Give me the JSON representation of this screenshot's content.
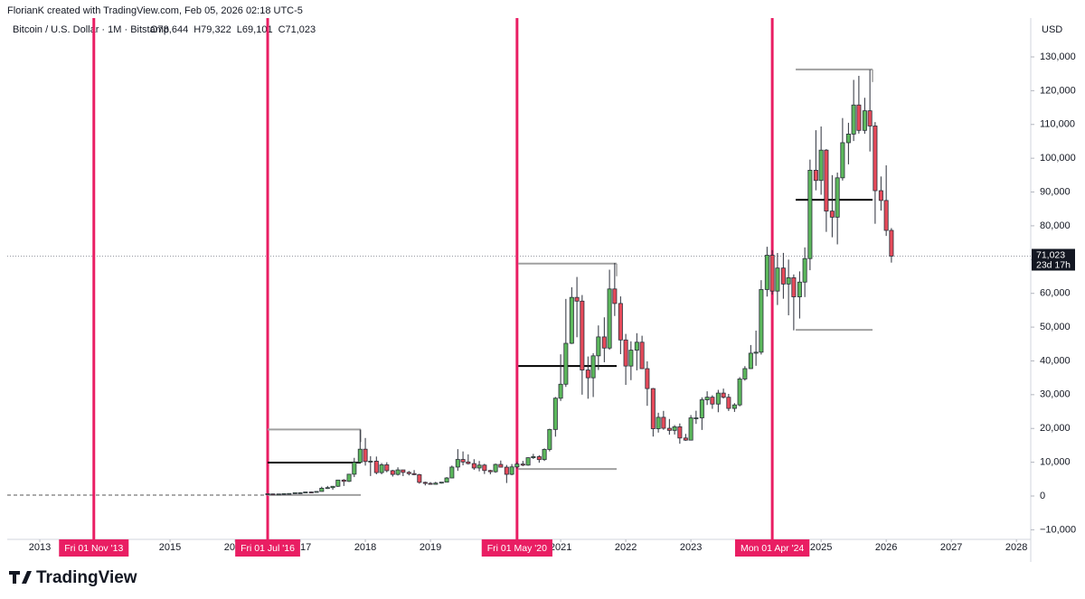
{
  "header": "FlorianK created with TradingView.com, Feb 05, 2026 02:18 UTC-5",
  "logo": "TradingView",
  "chart_data": {
    "type": "candlestick",
    "title": "Bitcoin / U.S. Dollar · 1M · Bitstamp",
    "legend_ohlc": [
      {
        "value": 78644,
        "label": "O78,644"
      },
      {
        "value": 79322,
        "label": "H79,322"
      },
      {
        "value": 69101,
        "label": "L69,101"
      },
      {
        "value": 71023,
        "label": "C71,023"
      }
    ],
    "y_axis_label": "USD",
    "up_color": "#5cb85c",
    "down_color": "#e64a5a",
    "border_color": "#2a2e39",
    "x": [
      2016.5,
      2016.58,
      2016.67,
      2016.75,
      2016.83,
      2016.92,
      2017.0,
      2017.08,
      2017.17,
      2017.25,
      2017.33,
      2017.42,
      2017.5,
      2017.58,
      2017.67,
      2017.75,
      2017.83,
      2017.92,
      2018.0,
      2018.08,
      2018.17,
      2018.25,
      2018.33,
      2018.42,
      2018.5,
      2018.58,
      2018.67,
      2018.75,
      2018.83,
      2018.92,
      2019.0,
      2019.08,
      2019.17,
      2019.25,
      2019.33,
      2019.42,
      2019.5,
      2019.58,
      2019.67,
      2019.75,
      2019.83,
      2019.92,
      2020.0,
      2020.08,
      2020.17,
      2020.25,
      2020.33,
      2020.42,
      2020.5,
      2020.58,
      2020.67,
      2020.75,
      2020.83,
      2020.92,
      2021.0,
      2021.08,
      2021.17,
      2021.25,
      2021.33,
      2021.42,
      2021.5,
      2021.58,
      2021.67,
      2021.75,
      2021.83,
      2021.92,
      2022.0,
      2022.08,
      2022.17,
      2022.25,
      2022.33,
      2022.42,
      2022.5,
      2022.58,
      2022.67,
      2022.75,
      2022.83,
      2022.92,
      2023.0,
      2023.08,
      2023.17,
      2023.25,
      2023.33,
      2023.42,
      2023.5,
      2023.58,
      2023.67,
      2023.75,
      2023.83,
      2023.92,
      2024.0,
      2024.08,
      2024.17,
      2024.25,
      2024.33,
      2024.42,
      2024.5,
      2024.58,
      2024.67,
      2024.75,
      2024.83,
      2024.92,
      2025.0,
      2025.08,
      2025.17,
      2025.25,
      2025.33,
      2025.42,
      2025.5,
      2025.58,
      2025.67,
      2025.75,
      2025.83,
      2025.92,
      2026.0,
      2026.08
    ],
    "open": [
      673,
      621,
      574,
      609,
      700,
      742,
      964,
      965,
      1190,
      1079,
      1347,
      2300,
      2480,
      2875,
      4720,
      4340,
      6450,
      9950,
      13860,
      10220,
      10320,
      6930,
      9240,
      7500,
      6390,
      7730,
      7010,
      6630,
      6320,
      4040,
      3740,
      3460,
      3820,
      4100,
      5340,
      8570,
      10820,
      10080,
      9600,
      8300,
      9150,
      7550,
      7190,
      9350,
      8540,
      6420,
      8620,
      9450,
      9140,
      11340,
      11650,
      10780,
      13790,
      19700,
      28950,
      33100,
      45200,
      58800,
      57700,
      37300,
      35000,
      41500,
      47100,
      43800,
      61300,
      57000,
      46200,
      38480,
      43180,
      45530,
      37700,
      31800,
      19930,
      23300,
      20050,
      19430,
      20490,
      17170,
      16540,
      23130,
      23140,
      28480,
      29250,
      27220,
      30470,
      29230,
      25930,
      26970,
      34650,
      37720,
      42280,
      42580,
      61130,
      71280,
      60670,
      67490,
      62760,
      64630,
      58970,
      63330,
      70290,
      96450,
      93430,
      102400,
      84350,
      82550,
      94200,
      104600,
      107150,
      115760,
      108250,
      114050,
      109550,
      90400,
      87500,
      78644
    ],
    "high": [
      704,
      628,
      616,
      740,
      755,
      979,
      1153,
      1200,
      1291,
      1350,
      2760,
      2980,
      2930,
      4740,
      5000,
      6470,
      11300,
      19666,
      17176,
      11790,
      11680,
      9760,
      9990,
      7760,
      8500,
      7760,
      7410,
      7680,
      6570,
      4250,
      4120,
      4200,
      4140,
      5600,
      9000,
      13880,
      13190,
      12330,
      10900,
      10370,
      9530,
      7750,
      9600,
      10500,
      9190,
      9460,
      10080,
      10380,
      11440,
      12470,
      12080,
      14100,
      19920,
      29300,
      41950,
      58350,
      61800,
      64850,
      59500,
      41300,
      42300,
      50500,
      52900,
      67000,
      69000,
      59100,
      47990,
      45800,
      48200,
      47450,
      39870,
      31980,
      24650,
      25200,
      22800,
      21000,
      21480,
      18390,
      23960,
      25250,
      29200,
      31000,
      29830,
      31430,
      31800,
      30230,
      27480,
      35200,
      38450,
      44700,
      48970,
      63900,
      73790,
      72800,
      71950,
      71980,
      70000,
      65600,
      66500,
      73600,
      99600,
      108300,
      109400,
      102700,
      95000,
      95750,
      111900,
      110500,
      123200,
      124400,
      117900,
      126200,
      110700,
      94600,
      97900,
      79322
    ],
    "low": [
      470,
      540,
      567,
      602,
      678,
      741,
      752,
      920,
      891,
      1059,
      1347,
      2100,
      1830,
      2690,
      2970,
      4150,
      5600,
      10700,
      9000,
      5920,
      6430,
      6440,
      7030,
      5750,
      6070,
      5880,
      6100,
      6200,
      3650,
      3130,
      3350,
      3390,
      3670,
      4080,
      5330,
      7440,
      9080,
      9330,
      7730,
      7300,
      6520,
      6430,
      6870,
      8500,
      3850,
      6150,
      8110,
      8830,
      8950,
      10950,
      9850,
      10380,
      13220,
      17570,
      28150,
      32300,
      45000,
      47000,
      30000,
      28800,
      29300,
      37300,
      39600,
      43300,
      53300,
      42000,
      32900,
      34300,
      37200,
      37600,
      26700,
      17600,
      18780,
      19600,
      18150,
      18200,
      15480,
      16300,
      16500,
      21350,
      19560,
      26950,
      25810,
      24800,
      28860,
      25160,
      24900,
      26550,
      34150,
      37620,
      38550,
      41880,
      59050,
      59600,
      56550,
      58400,
      53500,
      49050,
      52550,
      58900,
      66850,
      90500,
      89200,
      78200,
      76600,
      74500,
      93400,
      98200,
      105100,
      107300,
      107250,
      102000,
      80600,
      84500,
      77000,
      69101
    ],
    "close": [
      621,
      574,
      609,
      700,
      742,
      964,
      965,
      1190,
      1079,
      1347,
      2300,
      2480,
      2875,
      4720,
      4340,
      6450,
      9950,
      13860,
      10220,
      10320,
      6930,
      9240,
      7500,
      6390,
      7730,
      7010,
      6630,
      6320,
      4040,
      3740,
      3460,
      3820,
      4100,
      5340,
      8570,
      10820,
      10080,
      9600,
      8300,
      9150,
      7550,
      7190,
      9350,
      8540,
      6420,
      8620,
      9450,
      9140,
      11340,
      11650,
      10780,
      13790,
      19700,
      28950,
      33100,
      45200,
      58800,
      57700,
      37300,
      35000,
      41500,
      47100,
      43800,
      61300,
      57000,
      46200,
      38480,
      43180,
      45530,
      37700,
      31800,
      19930,
      23300,
      20050,
      19430,
      20490,
      17170,
      16540,
      23130,
      23140,
      28480,
      29250,
      27220,
      30470,
      29230,
      25930,
      26970,
      34650,
      37720,
      42280,
      42580,
      61130,
      71280,
      60670,
      67490,
      62760,
      64630,
      58970,
      63330,
      70290,
      96450,
      93430,
      102400,
      84350,
      82550,
      94200,
      104600,
      107150,
      115760,
      108250,
      114050,
      109550,
      90400,
      87500,
      78644,
      71023
    ],
    "xlim": [
      2012.5,
      2028.22
    ],
    "xticks": [
      2013,
      2014,
      2015,
      2016,
      2017,
      2018,
      2019,
      2020,
      2021,
      2022,
      2023,
      2024,
      2025,
      2026,
      2027,
      2028
    ],
    "ylim": [
      -12840,
      141500
    ],
    "yticks": [
      {
        "value": -10000,
        "label": "−10,000"
      },
      0,
      {
        "value": 10000,
        "label": "10,000"
      },
      {
        "value": 20000,
        "label": "20,000"
      },
      {
        "value": 30000,
        "label": "30,000"
      },
      {
        "value": 40000,
        "label": "40,000"
      },
      {
        "value": 50000,
        "label": "50,000"
      },
      {
        "value": 60000,
        "label": "60,000"
      },
      {
        "value": 70000,
        "label": "70,000"
      },
      {
        "value": 80000,
        "label": "80,000"
      },
      {
        "value": 90000,
        "label": "90,000"
      },
      {
        "value": 100000,
        "label": "100,000"
      },
      {
        "value": 110000,
        "label": "110,000"
      },
      {
        "value": 120000,
        "label": "120,000"
      },
      {
        "value": 130000,
        "label": "130,000"
      }
    ],
    "events": [
      {
        "x": 2013.83,
        "label": "Fri 01 Nov '13"
      },
      {
        "x": 2016.5,
        "label": "Fri 01 Jul '16"
      },
      {
        "x": 2020.33,
        "label": "Fri 01 May '20"
      },
      {
        "x": 2024.25,
        "label": "Mon 01 Apr '24"
      }
    ],
    "event_color": "#e91e63",
    "ranges": [
      {
        "x": [
          2016.5,
          2017.93
        ],
        "high": 19700,
        "mid": 9900,
        "low": 300
      },
      {
        "x": [
          2020.35,
          2021.86
        ],
        "high": 68800,
        "mid": 38500,
        "low": 8000
      },
      {
        "x": [
          2024.61,
          2025.79
        ],
        "high": 126300,
        "mid": 87700,
        "low": 49200
      }
    ],
    "last_price": {
      "value": 71023,
      "label": "71,023"
    },
    "countdown": "23d 17h"
  }
}
